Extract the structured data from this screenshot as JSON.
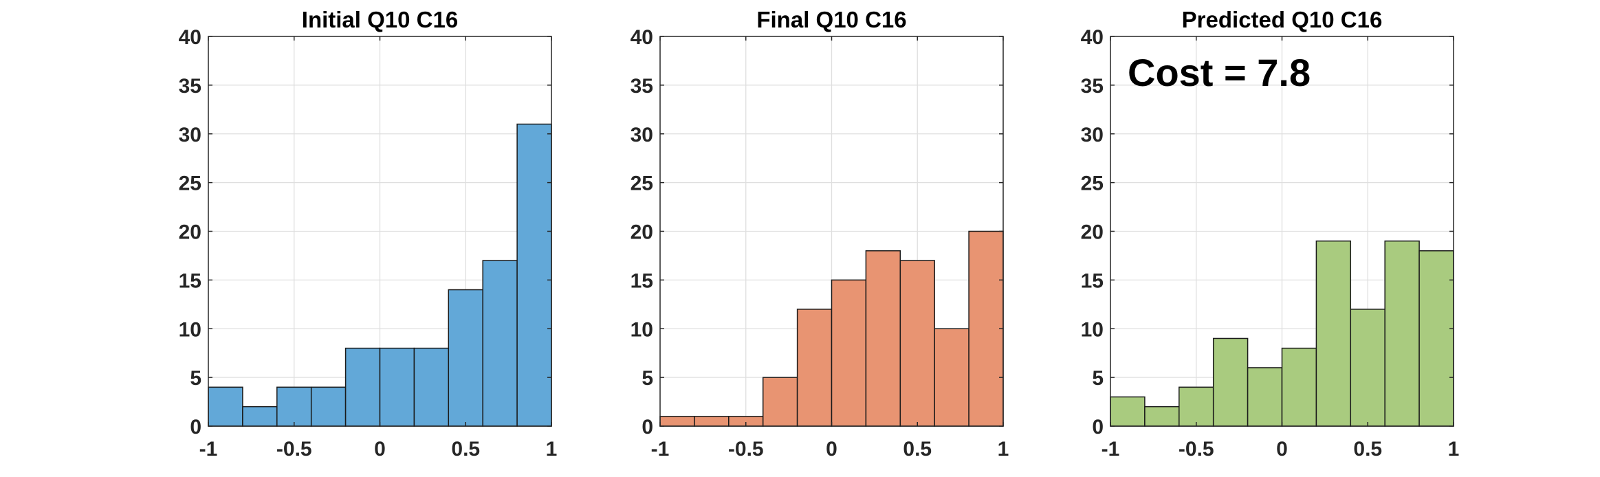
{
  "chart_data": [
    {
      "type": "bar",
      "subtype": "histogram",
      "title": "Initial Q10 C16",
      "bin_edges": [
        -1,
        -0.8,
        -0.6,
        -0.4,
        -0.2,
        0,
        0.2,
        0.4,
        0.6,
        0.8,
        1
      ],
      "values": [
        4,
        2,
        4,
        4,
        8,
        8,
        8,
        14,
        17,
        31
      ],
      "xlim": [
        -1,
        1
      ],
      "ylim": [
        0,
        40
      ],
      "xticks": [
        "-1",
        "-0.5",
        "0",
        "0.5",
        "1"
      ],
      "yticks": [
        "0",
        "5",
        "10",
        "15",
        "20",
        "25",
        "30",
        "35",
        "40"
      ],
      "color": "#62a8d8",
      "grid": true,
      "annotation": ""
    },
    {
      "type": "bar",
      "subtype": "histogram",
      "title": "Final Q10 C16",
      "bin_edges": [
        -1,
        -0.8,
        -0.6,
        -0.4,
        -0.2,
        0,
        0.2,
        0.4,
        0.6,
        0.8,
        1
      ],
      "values": [
        1,
        1,
        1,
        5,
        12,
        15,
        18,
        17,
        10,
        20
      ],
      "xlim": [
        -1,
        1
      ],
      "ylim": [
        0,
        40
      ],
      "xticks": [
        "-1",
        "-0.5",
        "0",
        "0.5",
        "1"
      ],
      "yticks": [
        "0",
        "5",
        "10",
        "15",
        "20",
        "25",
        "30",
        "35",
        "40"
      ],
      "color": "#e89472",
      "grid": true,
      "annotation": ""
    },
    {
      "type": "bar",
      "subtype": "histogram",
      "title": "Predicted Q10 C16",
      "bin_edges": [
        -1,
        -0.8,
        -0.6,
        -0.4,
        -0.2,
        0,
        0.2,
        0.4,
        0.6,
        0.8,
        1
      ],
      "values": [
        3,
        2,
        4,
        9,
        6,
        8,
        19,
        12,
        19,
        18
      ],
      "xlim": [
        -1,
        1
      ],
      "ylim": [
        0,
        40
      ],
      "xticks": [
        "-1",
        "-0.5",
        "0",
        "0.5",
        "1"
      ],
      "yticks": [
        "0",
        "5",
        "10",
        "15",
        "20",
        "25",
        "30",
        "35",
        "40"
      ],
      "color": "#a9cb7f",
      "grid": true,
      "annotation": "Cost = 7.8"
    }
  ]
}
